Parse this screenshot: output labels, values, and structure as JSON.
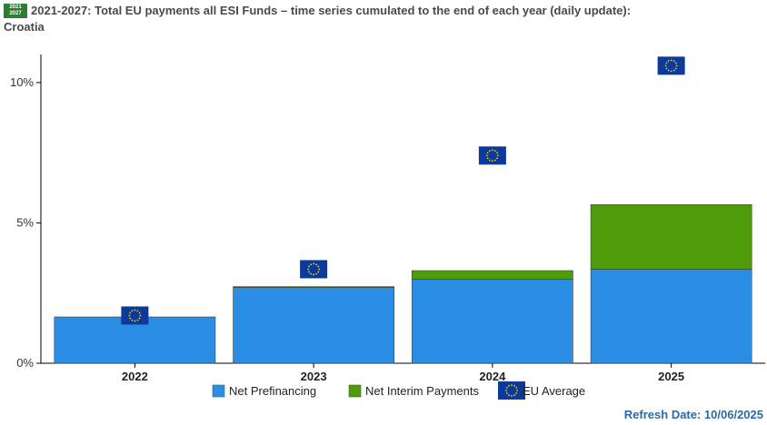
{
  "header": {
    "badge_top": "2021",
    "badge_bottom": "2027",
    "title": "2021-2027: Total EU payments all ESI Funds – time series cumulated to the end of each year (daily update):",
    "subtitle": "Croatia"
  },
  "footer": {
    "refresh_label": "Refresh Date: 10/06/2025"
  },
  "chart_data": {
    "type": "bar",
    "stacked": true,
    "categories": [
      "2022",
      "2023",
      "2024",
      "2025"
    ],
    "series": [
      {
        "name": "Net Prefinancing",
        "color": "#2a8fe4",
        "values": [
          1.65,
          2.7,
          3.0,
          3.35
        ]
      },
      {
        "name": "Net Interim Payments",
        "color": "#4e9c0a",
        "values": [
          0.0,
          0.03,
          0.3,
          2.3
        ]
      }
    ],
    "markers": {
      "name": "EU Average",
      "icon": "eu-flag-icon",
      "values": [
        1.7,
        3.35,
        7.4,
        10.6
      ]
    },
    "yticks": [
      {
        "value": 0,
        "label": "0%"
      },
      {
        "value": 5,
        "label": "5%"
      },
      {
        "value": 10,
        "label": "10%"
      }
    ],
    "ylim": [
      0,
      11
    ],
    "grid": false,
    "legend": "bottom"
  }
}
